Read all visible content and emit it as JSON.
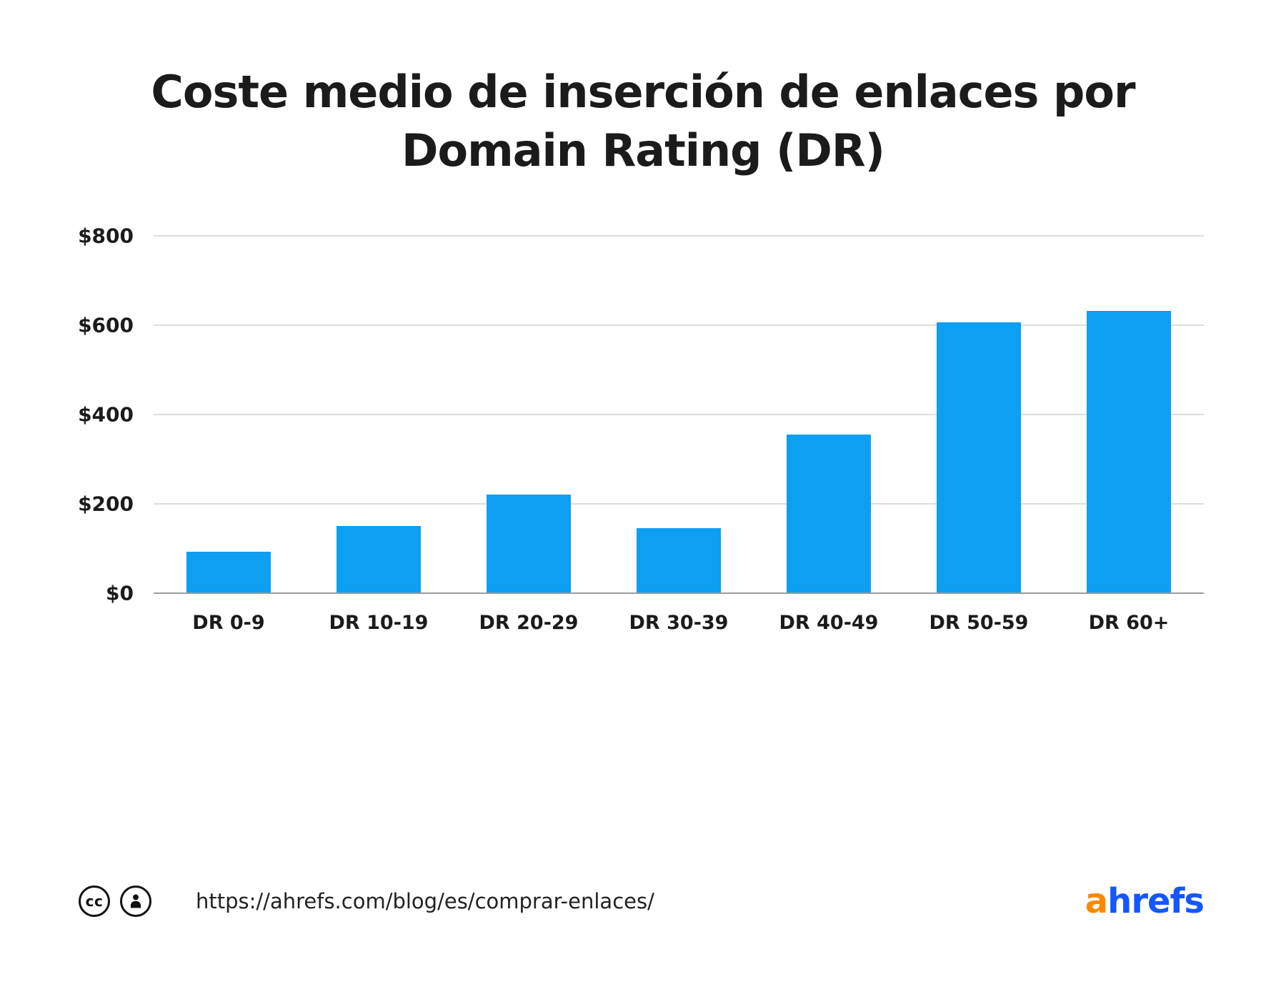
{
  "title": "Coste medio de inserción de enlaces por Domain Rating (DR)",
  "chart_data": {
    "type": "bar",
    "categories": [
      "DR 0-9",
      "DR 10-19",
      "DR 20-29",
      "DR 30-39",
      "DR 40-49",
      "DR 50-59",
      "DR 60+"
    ],
    "values": [
      93,
      150,
      220,
      145,
      354,
      606,
      632
    ],
    "title": "Coste medio de inserción de enlaces por Domain Rating (DR)",
    "xlabel": "",
    "ylabel": "",
    "ylim": [
      0,
      800
    ],
    "yticks": [
      0,
      200,
      400,
      600,
      800
    ],
    "ytick_labels": [
      "$0",
      "$200",
      "$400",
      "$600",
      "$800"
    ],
    "grid": true,
    "legend": false
  },
  "footer": {
    "cc_icon_text": "cc",
    "url": "https://ahrefs.com/blog/es/comprar-enlaces/",
    "logo": {
      "a": "a",
      "rest": "hrefs"
    }
  },
  "colors": {
    "bar": "#0d9ff2",
    "logo_a": "#ff8800",
    "logo_rest": "#1557ff",
    "title_text": "#1b1b1b",
    "gridline": "#dcdcdc",
    "baseline": "#9b9b9b"
  }
}
